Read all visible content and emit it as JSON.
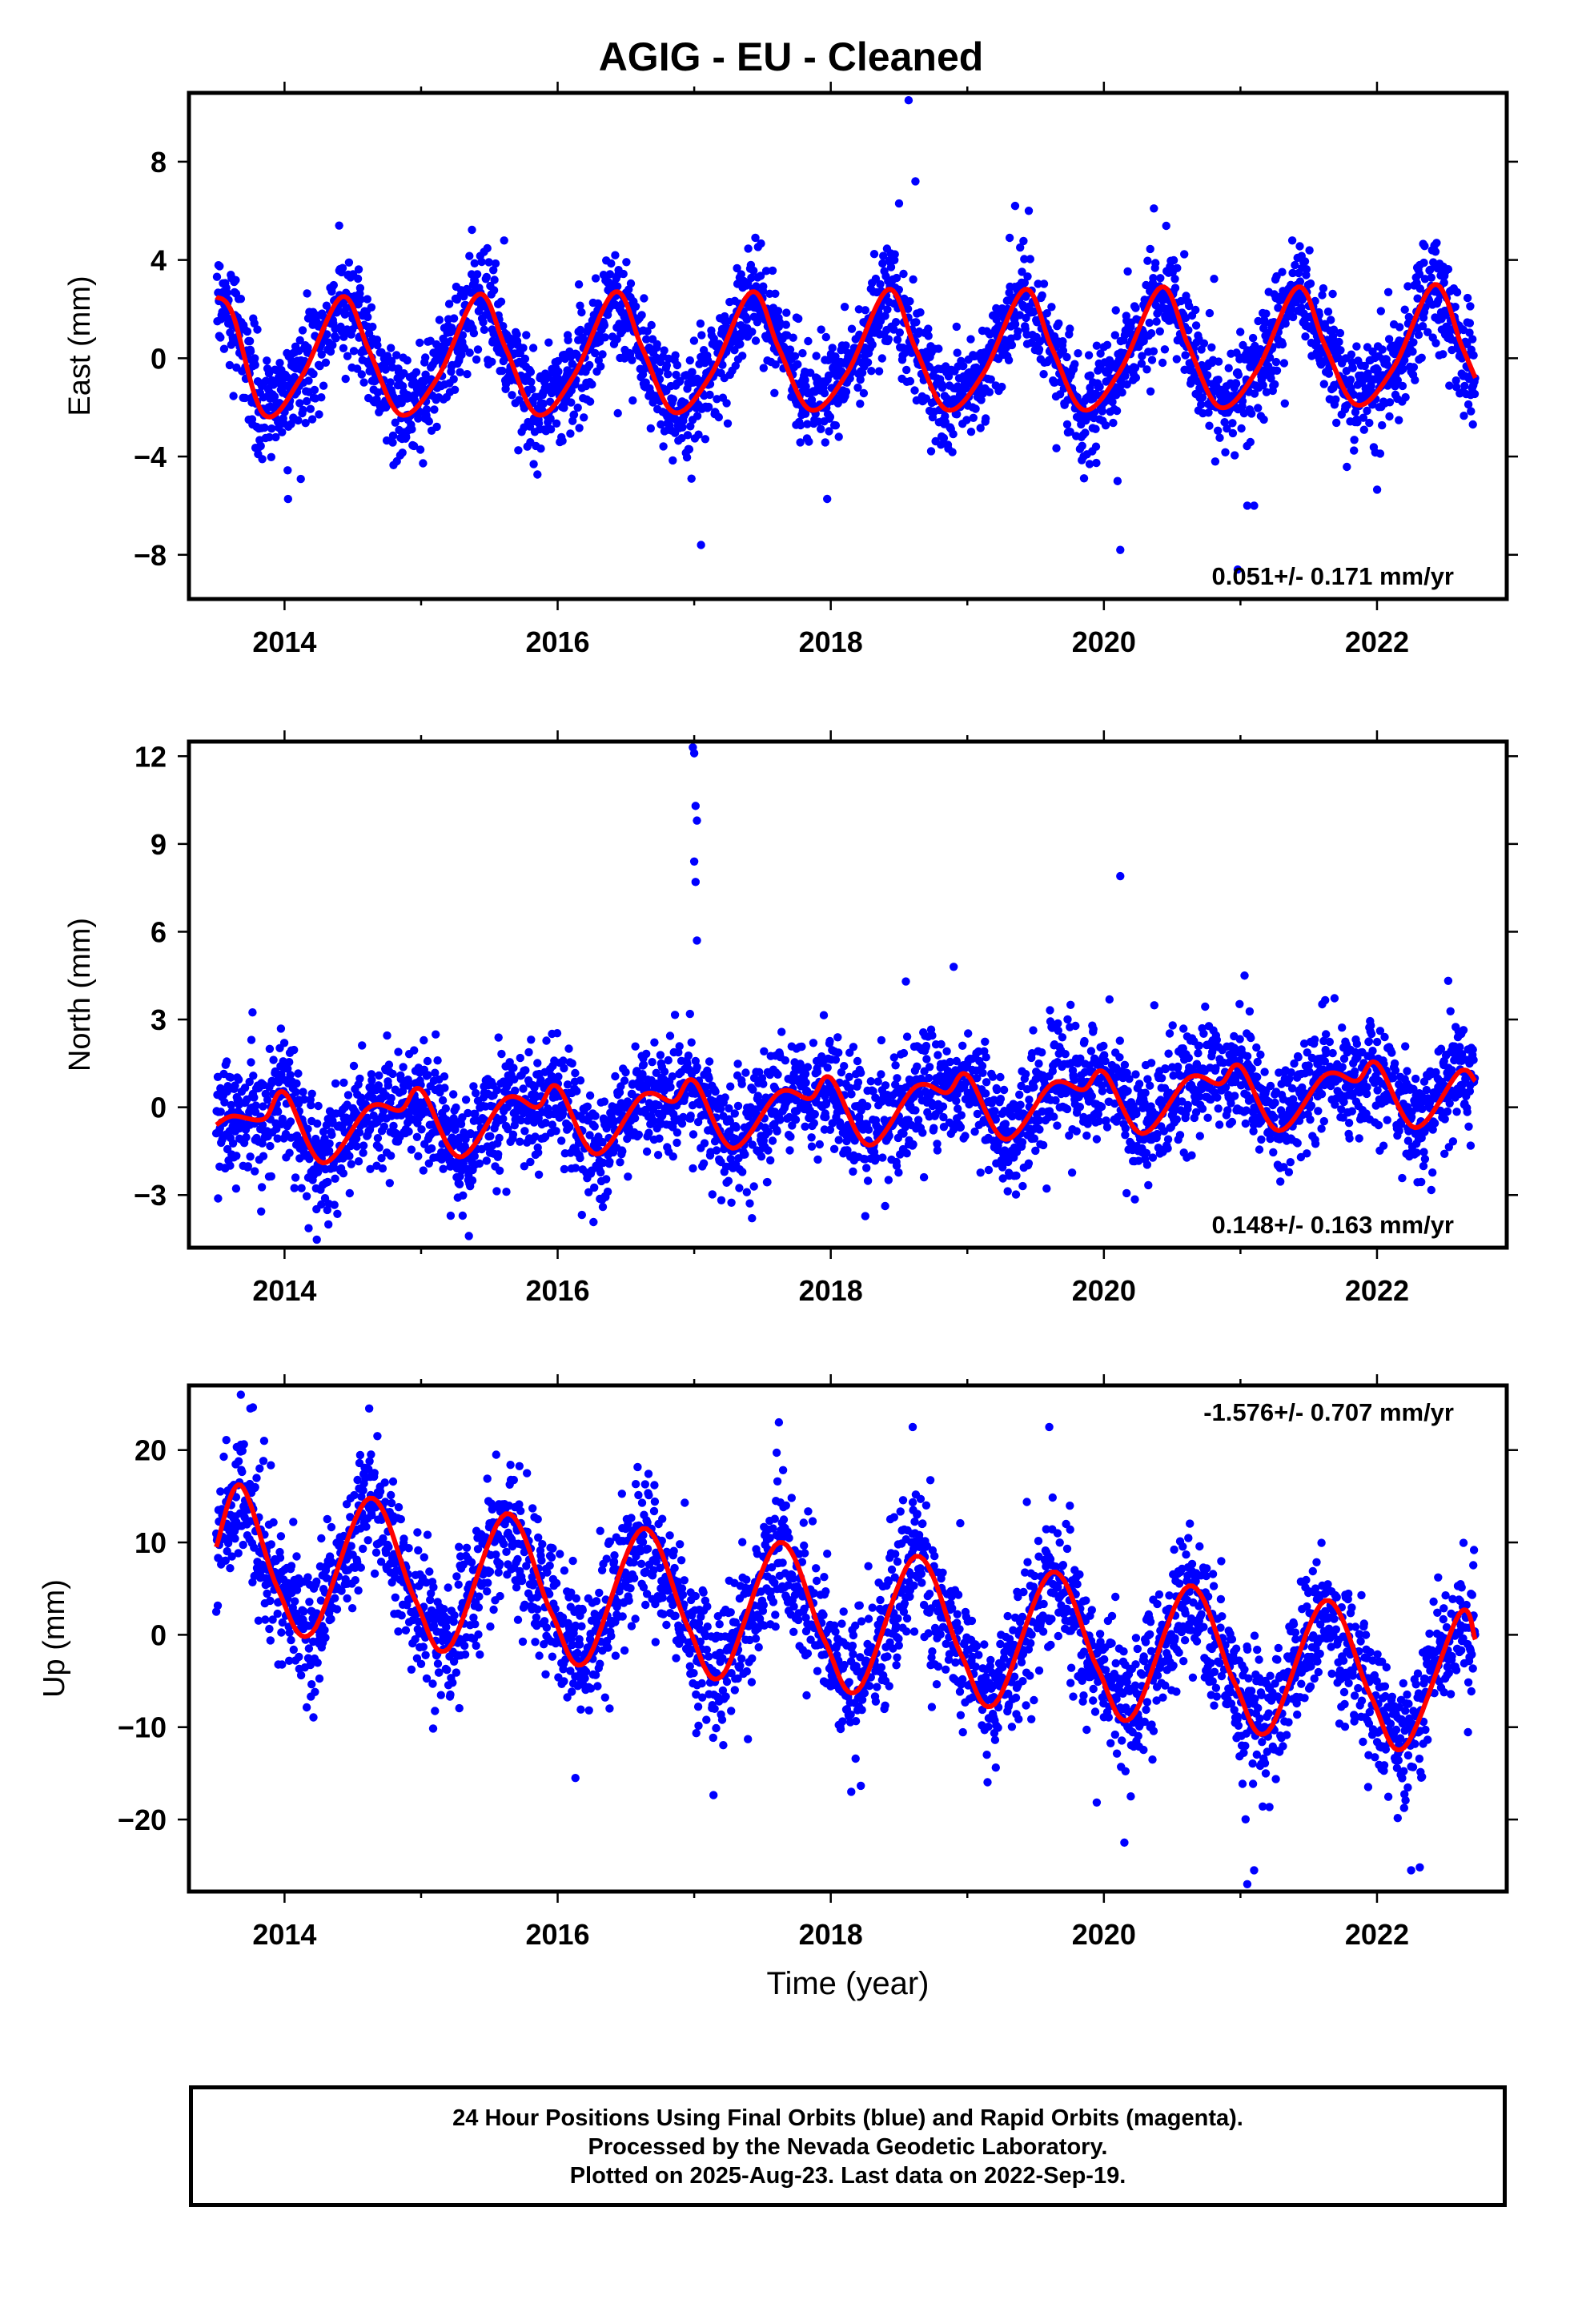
{
  "title": "AGIG  - EU - Cleaned",
  "x_axis_label": "Time (year)",
  "footer": {
    "line1": "24 Hour Positions Using Final Orbits (blue) and Rapid Orbits (magenta).",
    "line2": "Processed by the Nevada Geodetic Laboratory.",
    "line3": "Plotted on 2025-Aug-23. Last data on 2022-Sep-19."
  },
  "colors": {
    "points": "#0000ff",
    "fit": "#ff0000",
    "frame": "#000000"
  },
  "chart_data": [
    {
      "type": "scatter",
      "ylabel": "East (mm)",
      "xlim": [
        2013.3,
        2022.95
      ],
      "ylim": [
        -9.8,
        10.8
      ],
      "xticks": [
        2014,
        2016,
        2018,
        2020,
        2022
      ],
      "yticks": [
        -8,
        -4,
        0,
        4,
        8
      ],
      "ytick_labels": [
        "−8",
        "−4",
        "0",
        "4",
        "8"
      ],
      "rate_text": "0.051+/- 0.171 mm/yr",
      "rate_position": "bottom-right",
      "data_start": 2013.5,
      "data_end": 2022.72,
      "noise_sd": 1.05,
      "fit": {
        "x": [
          2013.5,
          2013.62,
          2013.85,
          2014.12,
          2014.42,
          2014.62,
          2014.85,
          2015.12,
          2015.42,
          2015.62,
          2015.85,
          2016.12,
          2016.42,
          2016.62,
          2016.85,
          2017.12,
          2017.42,
          2017.62,
          2017.85,
          2018.12,
          2018.42,
          2018.62,
          2018.85,
          2019.12,
          2019.42,
          2019.62,
          2019.85,
          2020.12,
          2020.42,
          2020.62,
          2020.85,
          2021.12,
          2021.42,
          2021.62,
          2021.85,
          2022.12,
          2022.42,
          2022.62,
          2022.72
        ],
        "y": [
          2.5,
          1.8,
          -2.3,
          -0.8,
          2.5,
          0.3,
          -2.3,
          -0.8,
          2.6,
          0.4,
          -2.3,
          -0.7,
          2.7,
          0.4,
          -2.2,
          -0.7,
          2.7,
          0.4,
          -2.1,
          -0.6,
          2.8,
          0.4,
          -2.1,
          -0.6,
          2.8,
          0.4,
          -2.1,
          -0.5,
          2.9,
          0.5,
          -2.0,
          -0.5,
          2.9,
          0.5,
          -1.9,
          -0.4,
          3.0,
          0.5,
          -0.8
        ]
      },
      "outliers": {
        "x": [
          2018.57,
          2018.62,
          2017.05,
          2016.98,
          2020.12,
          2020.1,
          2021.05,
          2021.1,
          2020.98,
          2014.4,
          2018.5,
          2019.35,
          2019.45
        ],
        "y": [
          10.5,
          7.2,
          -7.6,
          -4.9,
          -7.8,
          -5.0,
          -6.0,
          -6.0,
          -8.6,
          5.4,
          6.3,
          6.2,
          6.0
        ]
      }
    },
    {
      "type": "scatter",
      "ylabel": "North (mm)",
      "xlim": [
        2013.3,
        2022.95
      ],
      "ylim": [
        -4.8,
        12.5
      ],
      "xticks": [
        2014,
        2016,
        2018,
        2020,
        2022
      ],
      "yticks": [
        -3,
        0,
        3,
        6,
        9,
        12
      ],
      "ytick_labels": [
        "−3",
        "0",
        "3",
        "6",
        "9",
        "12"
      ],
      "rate_text": "0.148+/- 0.163 mm/yr",
      "rate_position": "bottom-right",
      "data_start": 2013.5,
      "data_end": 2022.72,
      "noise_sd": 0.95,
      "fit": {
        "x": [
          2013.5,
          2013.62,
          2013.85,
          2014.0,
          2014.28,
          2014.62,
          2014.85,
          2015.0,
          2015.28,
          2015.62,
          2015.85,
          2016.0,
          2016.28,
          2016.62,
          2016.85,
          2017.0,
          2017.28,
          2017.62,
          2017.85,
          2018.0,
          2018.28,
          2018.62,
          2018.85,
          2019.0,
          2019.28,
          2019.62,
          2019.85,
          2020.0,
          2020.28,
          2020.62,
          2020.85,
          2021.0,
          2021.28,
          2021.62,
          2021.85,
          2022.0,
          2022.28,
          2022.6,
          2022.72
        ],
        "y": [
          -0.6,
          -0.3,
          -0.4,
          0.5,
          -1.9,
          0.0,
          -0.1,
          0.6,
          -1.7,
          0.3,
          0.0,
          0.7,
          -1.6,
          0.4,
          0.2,
          0.9,
          -1.4,
          0.5,
          0.3,
          1.0,
          -1.3,
          0.7,
          0.5,
          1.1,
          -1.1,
          0.8,
          0.6,
          1.2,
          -0.9,
          1.0,
          0.8,
          1.4,
          -0.8,
          1.1,
          0.9,
          1.5,
          -0.7,
          1.2,
          0.9
        ]
      },
      "outliers": {
        "x": [
          2016.99,
          2017.0,
          2017.01,
          2017.02,
          2017.0,
          2017.01,
          2017.02,
          2020.12,
          2021.03,
          2018.9,
          2018.55,
          2015.35
        ],
        "y": [
          12.3,
          12.1,
          10.3,
          9.8,
          8.4,
          7.7,
          5.7,
          7.9,
          4.5,
          4.8,
          4.3,
          -4.4
        ]
      }
    },
    {
      "type": "scatter",
      "ylabel": "Up (mm)",
      "xlim": [
        2013.3,
        2022.95
      ],
      "ylim": [
        -27.8,
        27.0
      ],
      "xticks": [
        2014,
        2016,
        2018,
        2020,
        2022
      ],
      "yticks": [
        -20,
        -10,
        0,
        10,
        20
      ],
      "ytick_labels": [
        "−20",
        "−10",
        "0",
        "10",
        "20"
      ],
      "rate_text": "-1.576+/- 0.707 mm/yr",
      "rate_position": "top-right",
      "data_start": 2013.5,
      "data_end": 2022.72,
      "noise_sd": 3.6,
      "fit": {
        "x": [
          2013.5,
          2013.68,
          2013.95,
          2014.2,
          2014.62,
          2014.95,
          2015.2,
          2015.62,
          2015.95,
          2016.2,
          2016.62,
          2016.95,
          2017.2,
          2017.62,
          2017.95,
          2018.2,
          2018.62,
          2018.95,
          2019.2,
          2019.62,
          2019.95,
          2020.2,
          2020.62,
          2020.95,
          2021.2,
          2021.62,
          2021.95,
          2022.2,
          2022.6,
          2022.72
        ],
        "y": [
          9.5,
          16.2,
          5.0,
          0.2,
          14.8,
          4.0,
          -1.5,
          13.1,
          2.5,
          -3.0,
          11.5,
          1.0,
          -4.5,
          10.0,
          -0.5,
          -6.0,
          8.5,
          -2.0,
          -7.5,
          6.8,
          -3.5,
          -9.0,
          5.3,
          -5.0,
          -10.5,
          3.7,
          -6.5,
          -12.2,
          2.2,
          -0.5
        ]
      },
      "outliers": {
        "x": [
          2013.68,
          2013.75,
          2014.62,
          2015.55,
          2016.13,
          2018.6,
          2018.15,
          2019.6,
          2020.15,
          2021.05,
          2021.1,
          2022.25,
          2013.5,
          2017.62
        ],
        "y": [
          26.0,
          24.5,
          24.5,
          19.5,
          -15.5,
          22.5,
          -17.0,
          22.5,
          -22.5,
          -27.0,
          -25.5,
          -25.5,
          2.5,
          23.0
        ]
      }
    }
  ]
}
